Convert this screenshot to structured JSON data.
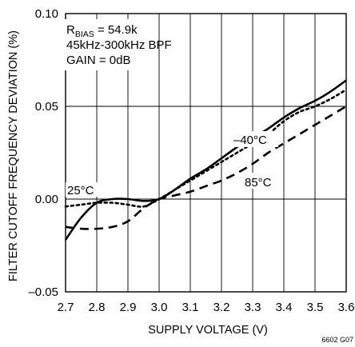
{
  "chart_data": {
    "type": "line",
    "title": "",
    "xlabel": "SUPPLY VOLTAGE (V)",
    "ylabel": "FILTER CUTOFF FREQUENCY DEVIATION (%)",
    "xlim": [
      2.7,
      3.6
    ],
    "ylim": [
      -0.05,
      0.1
    ],
    "grid": true,
    "x_ticks": [
      2.7,
      2.8,
      2.9,
      3.0,
      3.1,
      3.2,
      3.3,
      3.4,
      3.5,
      3.6
    ],
    "x_tick_labels": [
      "2.7",
      "2.8",
      "2.9",
      "3.0",
      "3.1",
      "3.2",
      "3.3",
      "3.4",
      "3.5",
      "3.6"
    ],
    "y_ticks": [
      -0.05,
      0,
      0.05,
      0.1
    ],
    "y_tick_labels": [
      "–0.05",
      "0.00",
      "0.05",
      "0.10"
    ],
    "annotations": {
      "rbias_main": "R",
      "rbias_sub": "BIAS",
      "rbias_value": " = 54.9k",
      "bpf": "45kHz-300kHz BPF",
      "gain": "GAIN = 0dB"
    },
    "figure_id": "6602 G07",
    "series": [
      {
        "name": "25°C",
        "style": "solid",
        "color": "#000000",
        "x": [
          2.7,
          2.75,
          2.8,
          2.85,
          2.9,
          2.95,
          3.0,
          3.05,
          3.1,
          3.15,
          3.2,
          3.25,
          3.3,
          3.35,
          3.4,
          3.45,
          3.5,
          3.55,
          3.6
        ],
        "y": [
          -0.022,
          -0.01,
          -0.002,
          0.0,
          0.0,
          -0.001,
          0.0,
          0.005,
          0.011,
          0.016,
          0.022,
          0.028,
          0.033,
          0.038,
          0.044,
          0.049,
          0.053,
          0.058,
          0.064
        ]
      },
      {
        "name": "–40°C",
        "style": "dotted",
        "color": "#000000",
        "x": [
          2.7,
          2.75,
          2.8,
          2.85,
          2.9,
          2.95,
          3.0,
          3.05,
          3.1,
          3.15,
          3.2,
          3.25,
          3.3,
          3.35,
          3.4,
          3.45,
          3.5,
          3.55,
          3.6
        ],
        "y": [
          -0.004,
          -0.003,
          -0.002,
          -0.002,
          -0.003,
          -0.004,
          0.0,
          0.005,
          0.01,
          0.015,
          0.02,
          0.025,
          0.03,
          0.035,
          0.042,
          0.047,
          0.05,
          0.054,
          0.059
        ]
      },
      {
        "name": "85°C",
        "style": "dashed",
        "color": "#000000",
        "x": [
          2.7,
          2.75,
          2.8,
          2.85,
          2.9,
          2.95,
          3.0,
          3.05,
          3.1,
          3.15,
          3.2,
          3.25,
          3.3,
          3.35,
          3.4,
          3.45,
          3.5,
          3.55,
          3.6
        ],
        "y": [
          -0.015,
          -0.016,
          -0.016,
          -0.015,
          -0.012,
          -0.005,
          0.0,
          0.002,
          0.004,
          0.007,
          0.01,
          0.014,
          0.019,
          0.025,
          0.03,
          0.035,
          0.04,
          0.045,
          0.05
        ]
      }
    ]
  }
}
